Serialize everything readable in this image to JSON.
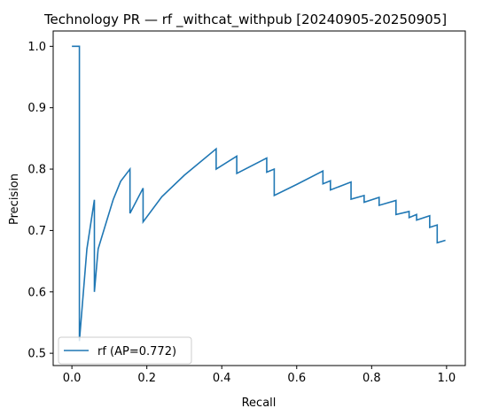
{
  "chart_data": {
    "type": "line",
    "title": "Technology PR — rf _withcat_withpub [20240905-20250905]",
    "xlabel": "Recall",
    "ylabel": "Precision",
    "xlim": [
      -0.05,
      1.05
    ],
    "ylim": [
      0.48,
      1.025
    ],
    "xticks": [
      0.0,
      0.2,
      0.4,
      0.6,
      0.8,
      1.0
    ],
    "xtick_labels": [
      "0.0",
      "0.2",
      "0.4",
      "0.6",
      "0.8",
      "1.0"
    ],
    "yticks": [
      0.5,
      0.6,
      0.7,
      0.8,
      0.9,
      1.0
    ],
    "ytick_labels": [
      "0.5",
      "0.6",
      "0.7",
      "0.8",
      "0.9",
      "1.0"
    ],
    "grid": false,
    "legend_position": "lower-left",
    "line_color": "#1f77b4",
    "series": [
      {
        "name": "rf (AP=0.772)",
        "x": [
          0.0,
          0.02,
          0.02,
          0.02,
          0.04,
          0.06,
          0.06,
          0.07,
          0.09,
          0.11,
          0.13,
          0.155,
          0.155,
          0.19,
          0.19,
          0.24,
          0.3,
          0.385,
          0.385,
          0.44,
          0.44,
          0.52,
          0.52,
          0.54,
          0.54,
          0.6,
          0.67,
          0.67,
          0.69,
          0.69,
          0.745,
          0.745,
          0.78,
          0.78,
          0.82,
          0.82,
          0.865,
          0.865,
          0.9,
          0.9,
          0.92,
          0.92,
          0.955,
          0.955,
          0.975,
          0.975,
          0.997
        ],
        "y": [
          1.0,
          1.0,
          0.52,
          0.52,
          0.67,
          0.75,
          0.6,
          0.67,
          0.71,
          0.75,
          0.78,
          0.8,
          0.728,
          0.769,
          0.714,
          0.755,
          0.79,
          0.833,
          0.8,
          0.821,
          0.793,
          0.818,
          0.795,
          0.8,
          0.757,
          0.775,
          0.797,
          0.776,
          0.781,
          0.766,
          0.779,
          0.751,
          0.757,
          0.746,
          0.754,
          0.741,
          0.749,
          0.726,
          0.731,
          0.721,
          0.726,
          0.717,
          0.724,
          0.705,
          0.709,
          0.68,
          0.684
        ]
      }
    ]
  }
}
